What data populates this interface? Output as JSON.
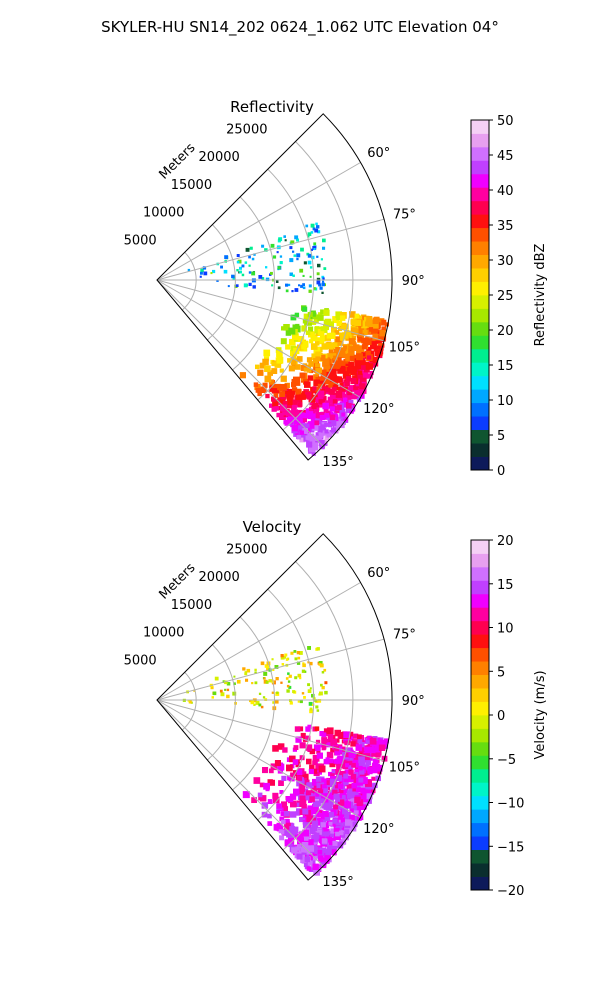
{
  "figure_title": "SKYLER-HU  SN14_202  0624_1.062 UTC Elevation 04°",
  "chart_data": [
    {
      "type": "polar-sector-radar",
      "title": "Reflectivity",
      "range_axis_label": "Meters",
      "azimuth_range_deg": [
        45,
        140
      ],
      "range_max_m": 30000,
      "range_ticks": [
        5000,
        10000,
        15000,
        20000,
        25000
      ],
      "range_tick_labels": [
        "5000",
        "10000",
        "15000",
        "20000",
        "25000"
      ],
      "azimuth_ticks": [
        60,
        75,
        90,
        105,
        120,
        135
      ],
      "azimuth_tick_labels": [
        "60°",
        "75°",
        "90°",
        "105°",
        "120°",
        "135°"
      ],
      "grid": true,
      "colorbar": {
        "label": "Reflectivity dBZ",
        "min": 0,
        "max": 50,
        "ticks": [
          0,
          5,
          10,
          15,
          20,
          25,
          30,
          35,
          40,
          45,
          50
        ],
        "tick_labels": [
          "0",
          "5",
          "10",
          "15",
          "20",
          "25",
          "30",
          "35",
          "40",
          "45",
          "50"
        ],
        "colors": [
          "#0d1a5a",
          "#0a2e2e",
          "#0f5530",
          "#0b3cff",
          "#0070ff",
          "#00a8ff",
          "#00e0ff",
          "#00f5c8",
          "#00ee90",
          "#30e030",
          "#66dd10",
          "#a8e800",
          "#d6f000",
          "#fff000",
          "#ffd000",
          "#ffa800",
          "#ff8000",
          "#ff5000",
          "#ff1010",
          "#ff0050",
          "#ff00a0",
          "#f000ff",
          "#c040ff",
          "#d070ff",
          "#e8a0f0",
          "#f5d0f5"
        ]
      },
      "echo_regions": [
        {
          "azimuth_deg": [
            100,
            138
          ],
          "range_m": [
            16000,
            30000
          ],
          "value_range": [
            15,
            45
          ]
        },
        {
          "azimuth_deg": [
            70,
            95
          ],
          "range_m": [
            3000,
            22000
          ],
          "value_range": [
            5,
            20
          ]
        }
      ]
    },
    {
      "type": "polar-sector-radar",
      "title": "Velocity",
      "range_axis_label": "Meters",
      "azimuth_range_deg": [
        45,
        140
      ],
      "range_max_m": 30000,
      "range_ticks": [
        5000,
        10000,
        15000,
        20000,
        25000
      ],
      "range_tick_labels": [
        "5000",
        "10000",
        "15000",
        "20000",
        "25000"
      ],
      "azimuth_ticks": [
        60,
        75,
        90,
        105,
        120,
        135
      ],
      "azimuth_tick_labels": [
        "60°",
        "75°",
        "90°",
        "105°",
        "120°",
        "135°"
      ],
      "grid": true,
      "colorbar": {
        "label": "Velocity (m/s)",
        "min": -20,
        "max": 20,
        "ticks": [
          -20,
          -15,
          -10,
          -5,
          0,
          5,
          10,
          15,
          20
        ],
        "tick_labels": [
          "−20",
          "−15",
          "−10",
          "−5",
          "0",
          "5",
          "10",
          "15",
          "20"
        ],
        "colors": [
          "#0d1a5a",
          "#0a2e2e",
          "#0f5530",
          "#0b3cff",
          "#0070ff",
          "#00a8ff",
          "#00e0ff",
          "#00f5c8",
          "#00ee90",
          "#30e030",
          "#66dd10",
          "#a8e800",
          "#d6f000",
          "#fff000",
          "#ffd000",
          "#ffa800",
          "#ff8000",
          "#ff5000",
          "#ff1010",
          "#ff0050",
          "#ff00a0",
          "#f000ff",
          "#c040ff",
          "#d070ff",
          "#e8a0f0",
          "#f5d0f5"
        ]
      },
      "echo_regions": [
        {
          "azimuth_deg": [
            100,
            138
          ],
          "range_m": [
            16000,
            30000
          ],
          "value_range": [
            10,
            15
          ]
        },
        {
          "azimuth_deg": [
            70,
            95
          ],
          "range_m": [
            3000,
            22000
          ],
          "value_range": [
            -5,
            5
          ]
        }
      ]
    }
  ]
}
